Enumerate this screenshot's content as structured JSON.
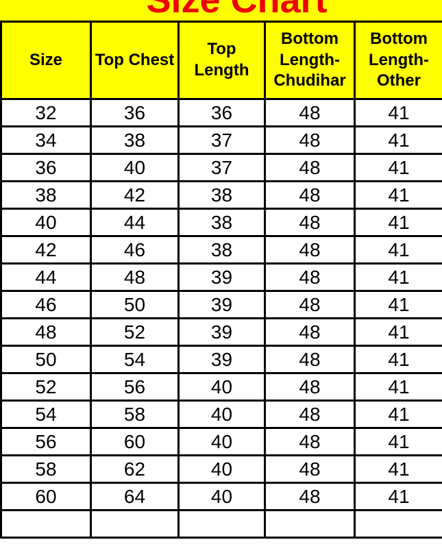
{
  "page": {
    "title": "Size Chart"
  },
  "colors": {
    "band": "#FFFF00",
    "title": "#EE0000",
    "border": "#000000",
    "cell_bg": "#FFFFFF",
    "text": "#000000"
  },
  "chart_data": {
    "type": "table",
    "title": "Size Chart",
    "columns": [
      "Size",
      "Top Chest",
      "Top Length",
      "Bottom Length-Chudihar",
      "Bottom Length-Other"
    ],
    "rows": [
      [
        "32",
        "36",
        "36",
        "48",
        "41"
      ],
      [
        "34",
        "38",
        "37",
        "48",
        "41"
      ],
      [
        "36",
        "40",
        "37",
        "48",
        "41"
      ],
      [
        "38",
        "42",
        "38",
        "48",
        "41"
      ],
      [
        "40",
        "44",
        "38",
        "48",
        "41"
      ],
      [
        "42",
        "46",
        "38",
        "48",
        "41"
      ],
      [
        "44",
        "48",
        "39",
        "48",
        "41"
      ],
      [
        "46",
        "50",
        "39",
        "48",
        "41"
      ],
      [
        "48",
        "52",
        "39",
        "48",
        "41"
      ],
      [
        "50",
        "54",
        "39",
        "48",
        "41"
      ],
      [
        "52",
        "56",
        "40",
        "48",
        "41"
      ],
      [
        "54",
        "58",
        "40",
        "48",
        "41"
      ],
      [
        "56",
        "60",
        "40",
        "48",
        "41"
      ],
      [
        "58",
        "62",
        "40",
        "48",
        "41"
      ],
      [
        "60",
        "64",
        "40",
        "48",
        "41"
      ]
    ]
  }
}
